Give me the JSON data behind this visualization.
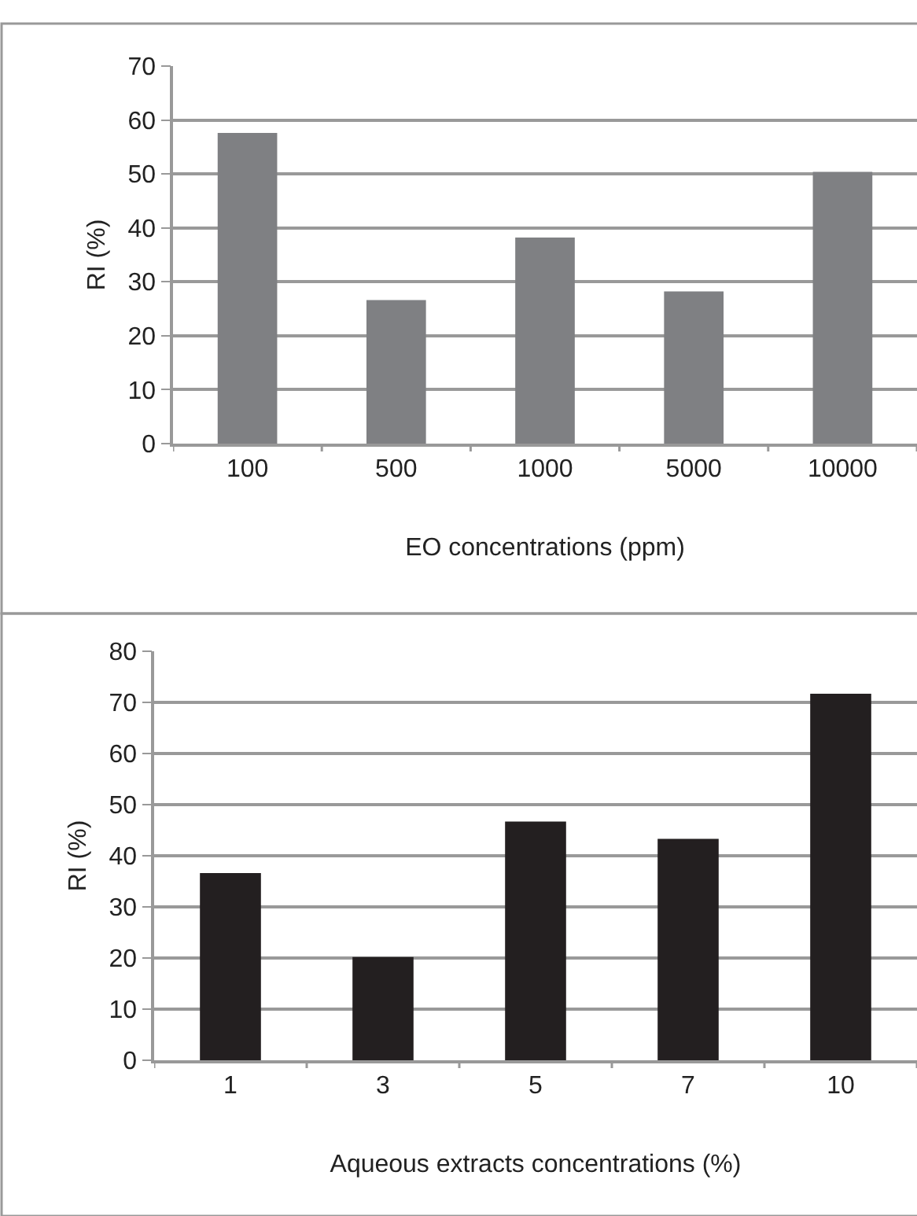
{
  "chart_data": [
    {
      "type": "bar",
      "xlabel": "EO concentrations (ppm)",
      "ylabel": "RI (%)",
      "categories": [
        "100",
        "500",
        "1000",
        "5000",
        "10000"
      ],
      "series": [
        {
          "color": "#7f8083",
          "values": [
            57.6,
            26.6,
            38.2,
            28.2,
            50.4
          ]
        }
      ],
      "ylim": [
        0,
        70
      ],
      "yticks": [
        0,
        10,
        20,
        30,
        40,
        50,
        60,
        70
      ],
      "grid": "y"
    },
    {
      "type": "bar",
      "xlabel": "Aqueous extracts concentrations (%)",
      "ylabel": "RI (%)",
      "categories": [
        "1",
        "3",
        "5",
        "7",
        "10"
      ],
      "series": [
        {
          "color": "#231f20",
          "values": [
            36.6,
            20.2,
            46.7,
            43.3,
            71.7
          ]
        }
      ],
      "ylim": [
        0,
        80
      ],
      "yticks": [
        0,
        10,
        20,
        30,
        40,
        50,
        60,
        70,
        80
      ],
      "grid": "y"
    }
  ]
}
